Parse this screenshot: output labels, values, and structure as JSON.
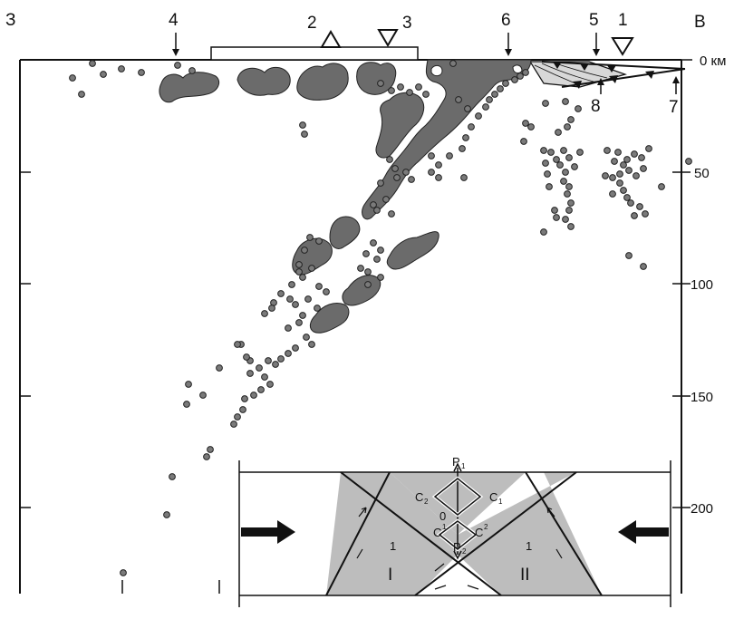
{
  "header": {
    "left_direction": "З",
    "right_direction": "В"
  },
  "markers": {
    "m1": "1",
    "m2": "2",
    "m3": "3",
    "m4": "4",
    "m5": "5",
    "m6": "6",
    "m7": "7",
    "m8": "8"
  },
  "depth_axis": {
    "d0": "0 км",
    "d50": "50",
    "d100": "100",
    "d150": "150",
    "d200": "200"
  },
  "inset": {
    "p1": "P",
    "p1_sub": "1",
    "p2": "P",
    "p2_sub": "2",
    "c1": "C",
    "c1_sub": "1",
    "c2": "C",
    "c2_sub": "2",
    "c1p": "C",
    "c1p_sup": "1",
    "c2p": "C",
    "c2p_sup": "2",
    "origin": "0",
    "region1_num": "1",
    "region2_num": "1",
    "region1_roman": "I",
    "region2_roman": "II"
  },
  "colors": {
    "zone_fill": "#6b6b6b",
    "dot_fill": "#7a7a7a",
    "inset_fill": "#bdbdbd",
    "line": "#111111"
  }
}
